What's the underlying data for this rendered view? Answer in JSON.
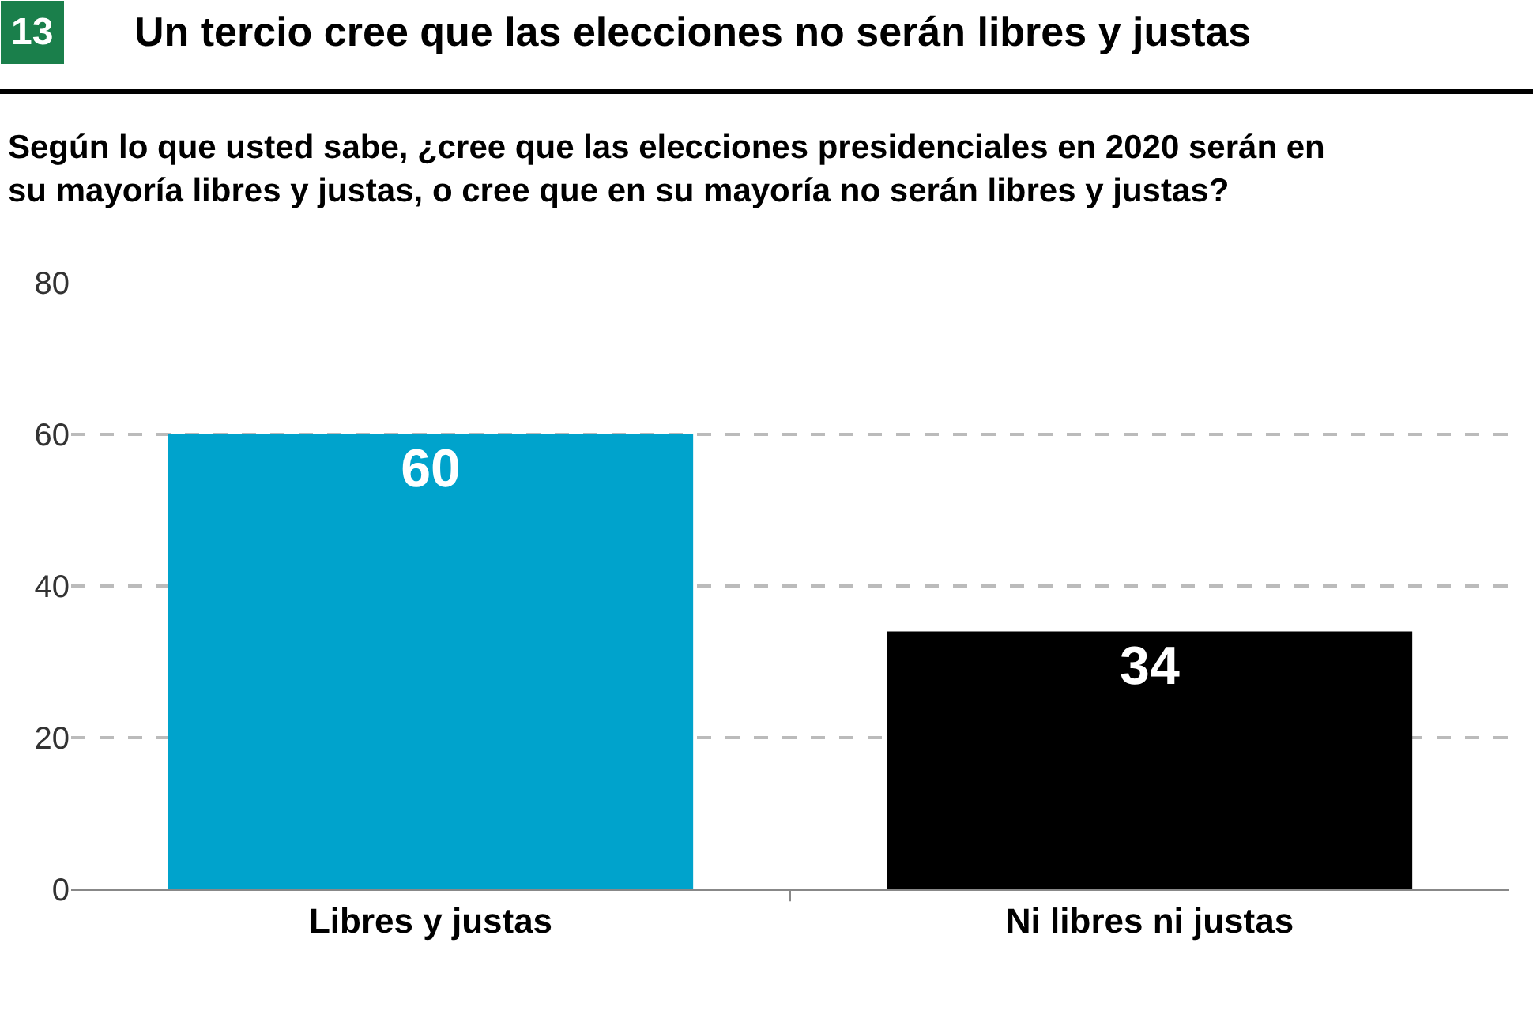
{
  "chart_data": {
    "type": "bar",
    "title": "Un tercio cree que las elecciones no serán libres y justas",
    "subtitle": "Según lo que usted sabe, ¿cree que las elecciones presidenciales en 2020 serán en\nsu mayoría libres y justas, o cree que en su mayoría no serán libres y justas?",
    "annotations": [
      "13"
    ],
    "categories": [
      "Libres y justas",
      "Ni libres ni justas"
    ],
    "values": [
      60,
      34
    ],
    "colors": [
      "#00a3cc",
      "#000000"
    ],
    "ylim": [
      0,
      80
    ],
    "yticks": [
      0,
      20,
      40,
      60,
      80
    ],
    "grid": "y",
    "data_labels": true
  }
}
